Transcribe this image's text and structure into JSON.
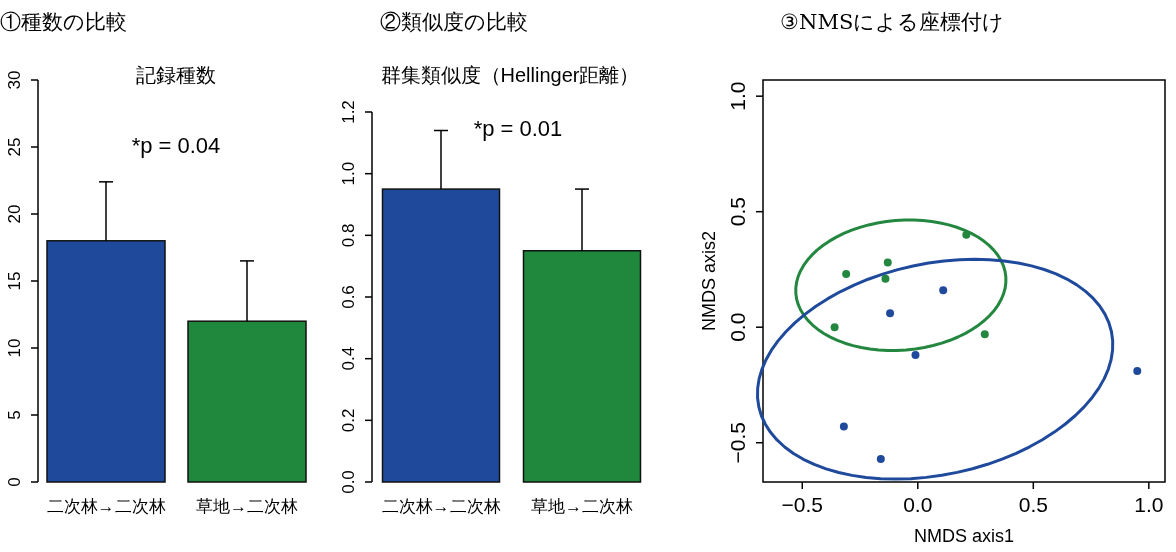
{
  "chart_data": [
    {
      "type": "bar",
      "title": "①種数の比較",
      "subtitle": "記録種数",
      "annotations": [
        "*p = 0.04"
      ],
      "categories": [
        "二次林→二次林",
        "草地→二次林"
      ],
      "values": [
        18,
        12
      ],
      "colors": [
        "#1f4a9c",
        "#1f883c"
      ],
      "errors": [
        [
          18,
          22.4
        ],
        [
          12,
          16.5
        ]
      ],
      "ylim": [
        0,
        30
      ],
      "yticks": [
        0,
        5,
        10,
        15,
        20,
        25,
        30
      ]
    },
    {
      "type": "bar",
      "title": "②類似度の比較",
      "subtitle": "群集類似度（Hellinger距離）",
      "annotations": [
        "*p = 0.01"
      ],
      "categories": [
        "二次林→二次林",
        "草地→二次林"
      ],
      "values": [
        0.95,
        0.75
      ],
      "colors": [
        "#1f4a9c",
        "#1f883c"
      ],
      "errors": [
        [
          0.95,
          1.14
        ],
        [
          0.75,
          0.95
        ]
      ],
      "ylim": [
        0,
        1.2
      ],
      "yticks": [
        {
          "value": 0,
          "label": "0.0"
        },
        0.2,
        0.4,
        0.6,
        0.8,
        {
          "value": 1,
          "label": "1.0"
        },
        1.2
      ]
    },
    {
      "type": "scatter",
      "title": "③NMSによる座標付け",
      "xlabel": "NMDS axis1",
      "ylabel": "NMDS axis2",
      "xlim": [
        -0.67,
        1.07
      ],
      "ylim": [
        -0.67,
        1.07
      ],
      "xticks": [
        {
          "value": -0.5,
          "label": "−0.5"
        },
        {
          "value": 0,
          "label": "0.0"
        },
        0.5,
        {
          "value": 1,
          "label": "1.0"
        }
      ],
      "yticks": [
        {
          "value": -0.5,
          "label": "−0.5"
        },
        {
          "value": 0,
          "label": "0.0"
        },
        0.5,
        {
          "value": 1,
          "label": "1.0"
        }
      ],
      "marker": "circle",
      "series": [
        {
          "type": "scatter",
          "color": "#23873f",
          "x": [
            0.21,
            -0.13,
            -0.14,
            -0.31,
            -0.36,
            0.29
          ],
          "values": [
            0.4,
            0.28,
            0.21,
            0.23,
            0.0,
            -0.03
          ]
        },
        {
          "type": "scatter",
          "color": "#1f4a9c",
          "x": [
            0.11,
            -0.12,
            -0.01,
            0.95,
            -0.32,
            -0.16
          ],
          "values": [
            0.16,
            0.06,
            -0.12,
            -0.19,
            -0.43,
            -0.57
          ]
        }
      ]
    }
  ]
}
